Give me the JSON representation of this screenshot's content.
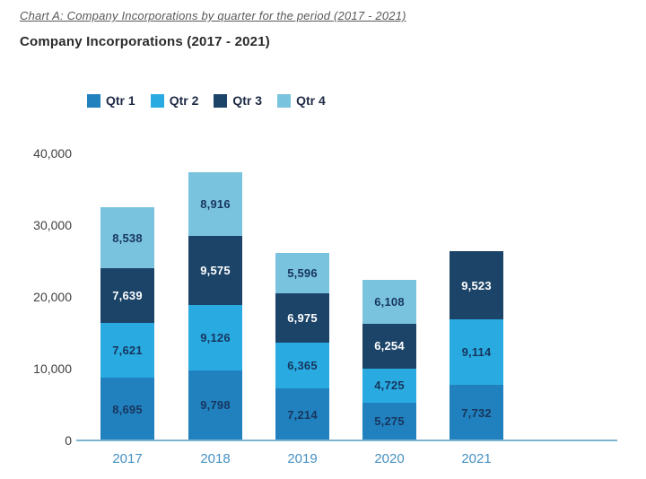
{
  "document": {
    "caption": "Chart A: Company Incorporations by quarter for the period (2017 - 2021)",
    "chart_title": "Company Incorporations (2017 - 2021)"
  },
  "chart_data": {
    "type": "bar",
    "stacked": true,
    "title": "Company Incorporations (2017 - 2021)",
    "categories": [
      "2017",
      "2018",
      "2019",
      "2020",
      "2021"
    ],
    "series": [
      {
        "name": "Qtr 1",
        "color": "#2181bf",
        "values": [
          8695,
          9798,
          7214,
          5275,
          7732
        ]
      },
      {
        "name": "Qtr 2",
        "color": "#29abe2",
        "values": [
          7621,
          9126,
          6365,
          4725,
          9114
        ]
      },
      {
        "name": "Qtr 3",
        "color": "#1c4468",
        "values": [
          7639,
          9575,
          6975,
          6254,
          9523
        ]
      },
      {
        "name": "Qtr 4",
        "color": "#7ac3df",
        "values": [
          8538,
          8916,
          5596,
          6108,
          null
        ]
      }
    ],
    "totals": [
      32493,
      37415,
      26150,
      22362,
      26369
    ],
    "ylim": [
      0,
      40000
    ],
    "ytick_step": 10000,
    "ytick_labels": [
      "0",
      "10,000",
      "20,000",
      "30,000",
      "40,000"
    ],
    "legend_position": "top",
    "grid": false,
    "xlabel": "",
    "ylabel": "",
    "colors": {
      "value_label_on_light": "#17365d",
      "value_label_on_dark": "#ffffff",
      "dark_series": [
        "Qtr 3"
      ],
      "axis_line": "#7fb4d1",
      "x_tick_label": "#4690c4",
      "y_tick_label": "#3f3f3f",
      "legend_text": "#1e2a44"
    }
  }
}
